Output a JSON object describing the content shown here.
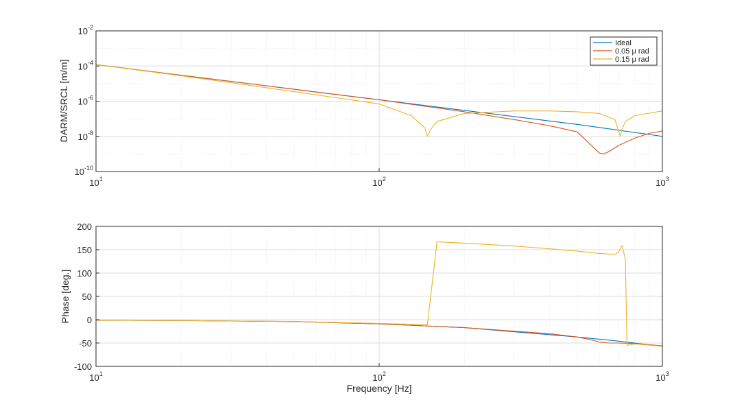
{
  "colors": {
    "ideal": "#0072BD",
    "rad005": "#D95319",
    "rad015": "#EDB120",
    "grid_major": "#dcdcdc",
    "grid_minor": "#ebebeb",
    "axis": "#262626"
  },
  "chart_data": [
    {
      "type": "line",
      "panel": "magnitude",
      "xlabel": "",
      "ylabel": "DARM/SRCL [m/m]",
      "xscale": "log",
      "yscale": "log",
      "xlim": [
        10,
        1000
      ],
      "ylim": [
        1e-10,
        0.01
      ],
      "x_ticks": [
        10,
        100,
        1000
      ],
      "x_tick_labels": [
        {
          "base": "10",
          "exp": "1"
        },
        {
          "base": "10",
          "exp": "2"
        },
        {
          "base": "10",
          "exp": "3"
        }
      ],
      "y_ticks": [
        1e-10,
        1e-08,
        1e-06,
        0.0001,
        0.01
      ],
      "y_tick_labels": [
        {
          "base": "10",
          "exp": "-10"
        },
        {
          "base": "10",
          "exp": "-8"
        },
        {
          "base": "10",
          "exp": "-6"
        },
        {
          "base": "10",
          "exp": "-4"
        },
        {
          "base": "10",
          "exp": "-2"
        }
      ],
      "grid": true,
      "minor_grid": true,
      "legend": {
        "position": "top-right",
        "entries": [
          "Ideal",
          "0.05 μ rad",
          "0.15 μ rad"
        ]
      },
      "series": [
        {
          "name": "Ideal",
          "x": [
            10,
            20,
            50,
            100,
            200,
            500,
            1000
          ],
          "y": [
            0.00012,
            3e-05,
            4.8e-06,
            1.2e-06,
            3e-07,
            4.8e-08,
            1e-08
          ]
        },
        {
          "name": "0.05 μ rad",
          "x": [
            10,
            20,
            50,
            100,
            200,
            300,
            400,
            500,
            600,
            620,
            650,
            700,
            800,
            900,
            1000
          ],
          "y": [
            0.00012,
            3e-05,
            4.8e-06,
            1.2e-06,
            2.5e-07,
            9e-08,
            4e-08,
            1.8e-08,
            1.1e-09,
            1e-09,
            1.4e-09,
            3e-09,
            8e-09,
            1.5e-08,
            2e-08
          ]
        },
        {
          "name": "0.15 μ rad",
          "x": [
            10,
            20,
            50,
            100,
            130,
            145,
            148,
            152,
            160,
            200,
            300,
            400,
            500,
            600,
            680,
            710,
            720,
            740,
            800,
            1000
          ],
          "y": [
            0.00012,
            2.8e-05,
            3.5e-06,
            7e-07,
            1.5e-07,
            3e-08,
            1e-08,
            2.5e-08,
            7e-08,
            2e-07,
            2.8e-07,
            2.8e-07,
            2.5e-07,
            2e-07,
            9e-08,
            1e-08,
            2.5e-08,
            7e-08,
            1.5e-07,
            2.8e-07
          ]
        }
      ]
    },
    {
      "type": "line",
      "panel": "phase",
      "xlabel": "Frequency [Hz]",
      "ylabel": "Phase [deg.]",
      "xscale": "log",
      "yscale": "linear",
      "xlim": [
        10,
        1000
      ],
      "ylim": [
        -100,
        200
      ],
      "x_ticks": [
        10,
        100,
        1000
      ],
      "x_tick_labels": [
        {
          "base": "10",
          "exp": "1"
        },
        {
          "base": "10",
          "exp": "2"
        },
        {
          "base": "10",
          "exp": "3"
        }
      ],
      "y_ticks": [
        -100,
        -50,
        0,
        50,
        100,
        150,
        200
      ],
      "y_tick_labels": [
        "-100",
        "-50",
        "0",
        "50",
        "100",
        "150",
        "200"
      ],
      "grid": true,
      "minor_grid": true,
      "series": [
        {
          "name": "Ideal",
          "x": [
            10,
            20,
            50,
            100,
            200,
            500,
            700,
            1000
          ],
          "y": [
            -1,
            -2,
            -4,
            -9,
            -17,
            -37,
            -46,
            -57
          ]
        },
        {
          "name": "0.05 μ rad",
          "x": [
            10,
            20,
            50,
            100,
            200,
            400,
            500,
            550,
            600,
            650,
            700,
            800,
            1000
          ],
          "y": [
            -1,
            -2,
            -4,
            -9,
            -17,
            -30,
            -37,
            -42,
            -48,
            -50,
            -50,
            -51,
            -56
          ]
        },
        {
          "name": "0.15 μ rad",
          "x": [
            10,
            20,
            50,
            100,
            148,
            160,
            200,
            300,
            400,
            500,
            600,
            680,
            700,
            720,
            740,
            750,
            800,
            1000
          ],
          "y": [
            -1,
            -2,
            -4,
            -8,
            -11,
            167,
            164,
            158,
            152,
            147,
            142,
            140,
            145,
            159,
            130,
            -55,
            -52,
            -57
          ]
        }
      ]
    }
  ]
}
